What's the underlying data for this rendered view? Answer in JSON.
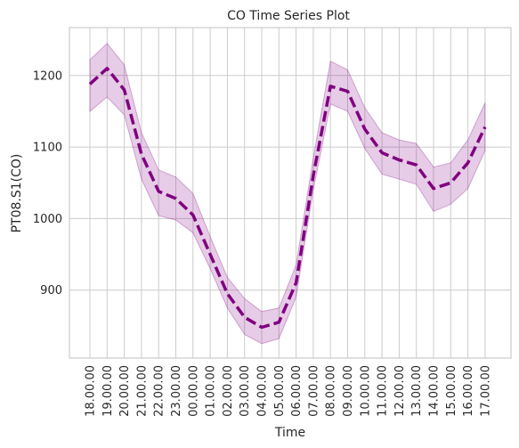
{
  "chart_data": {
    "type": "line",
    "title": "CO Time Series Plot",
    "xlabel": "Time",
    "ylabel": "PT08.S1(CO)",
    "categories": [
      "18.00.00",
      "19.00.00",
      "20.00.00",
      "21.00.00",
      "22.00.00",
      "23.00.00",
      "00.00.00",
      "01.00.00",
      "02.00.00",
      "03.00.00",
      "04.00.00",
      "05.00.00",
      "06.00.00",
      "07.00.00",
      "08.00.00",
      "09.00.00",
      "10.00.00",
      "11.00.00",
      "12.00.00",
      "13.00.00",
      "14.00.00",
      "15.00.00",
      "16.00.00",
      "17.00.00"
    ],
    "series": [
      {
        "values": [
          1188,
          1210,
          1180,
          1090,
          1038,
          1028,
          1005,
          950,
          895,
          862,
          848,
          855,
          910,
          1060,
          1185,
          1178,
          1125,
          1092,
          1082,
          1075,
          1042,
          1050,
          1078,
          1128
        ],
        "lower": [
          1150,
          1170,
          1145,
          1055,
          1004,
          998,
          980,
          930,
          875,
          838,
          825,
          832,
          890,
          1040,
          1160,
          1150,
          1098,
          1062,
          1055,
          1048,
          1010,
          1020,
          1042,
          1095
        ],
        "upper": [
          1222,
          1245,
          1215,
          1120,
          1068,
          1058,
          1035,
          975,
          918,
          888,
          870,
          875,
          935,
          1085,
          1220,
          1208,
          1155,
          1120,
          1110,
          1105,
          1072,
          1078,
          1110,
          1162
        ],
        "line_style": "dashed",
        "color": "#800080"
      }
    ],
    "yticks": [
      900,
      1000,
      1100,
      1200
    ],
    "ylim": [
      805,
      1267
    ],
    "grid": true,
    "legend": "none"
  }
}
